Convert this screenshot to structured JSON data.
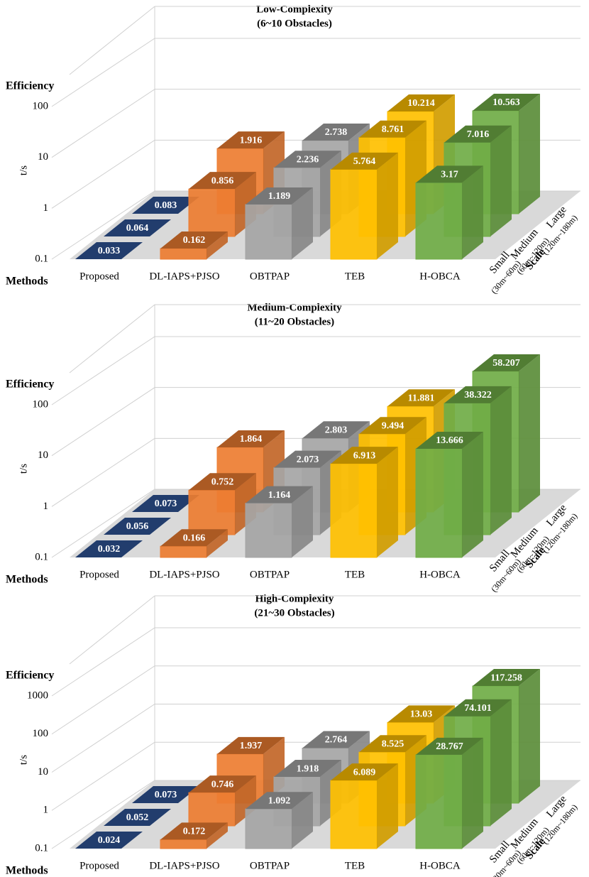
{
  "chart_data": [
    {
      "type": "bar3d",
      "title": "Low-Complexity",
      "subtitle": "(6~10  Obstacles)",
      "y_title": "Efficiency",
      "y_label": "t/s",
      "x_label": "Methods",
      "depth_label": "Scale",
      "categories": [
        "Proposed",
        "DL-IAPS+PJSO",
        "OBTPAP",
        "TEB",
        "H-OBCA"
      ],
      "colors": [
        "#2f5597",
        "#ed7d31",
        "#a5a5a5",
        "#ffc000",
        "#70ad47"
      ],
      "series": [
        {
          "name": "Small",
          "range": "(30m~60m)",
          "values": [
            0.033,
            0.162,
            1.189,
            5.764,
            3.17
          ]
        },
        {
          "name": "Medium",
          "range": "(60m~120m)",
          "values": [
            0.064,
            0.856,
            2.236,
            8.761,
            7.016
          ]
        },
        {
          "name": "Large",
          "range": "(120m~180m)",
          "values": [
            0.083,
            1.916,
            2.738,
            10.214,
            10.563
          ]
        }
      ],
      "log_y": true,
      "ylim": [
        0.1,
        100
      ],
      "yticks": [
        0.1,
        1,
        10,
        100
      ],
      "grid": true
    },
    {
      "type": "bar3d",
      "title": "Medium-Complexity",
      "subtitle": "(11~20 Obstacles)",
      "y_title": "Efficiency",
      "y_label": "t/s",
      "x_label": "Methods",
      "depth_label": "Scale",
      "categories": [
        "Proposed",
        "DL-IAPS+PJSO",
        "OBTPAP",
        "TEB",
        "H-OBCA"
      ],
      "colors": [
        "#2f5597",
        "#ed7d31",
        "#a5a5a5",
        "#ffc000",
        "#70ad47"
      ],
      "series": [
        {
          "name": "Small",
          "range": "(30m~60m)",
          "values": [
            0.032,
            0.166,
            1.164,
            6.913,
            13.666
          ]
        },
        {
          "name": "Medium",
          "range": "(60m~120m)",
          "values": [
            0.056,
            0.752,
            2.073,
            9.494,
            38.322
          ]
        },
        {
          "name": "Large",
          "range": "(120m~180m)",
          "values": [
            0.073,
            1.864,
            2.803,
            11.881,
            58.207
          ]
        }
      ],
      "log_y": true,
      "ylim": [
        0.1,
        100
      ],
      "yticks": [
        0.1,
        1,
        10,
        100
      ],
      "grid": true
    },
    {
      "type": "bar3d",
      "title": "High-Complexity",
      "subtitle": "(21~30 Obstacles)",
      "y_title": "Efficiency",
      "y_label": "t/s",
      "x_label": "Methods",
      "depth_label": "Scale",
      "categories": [
        "Proposed",
        "DL-IAPS+PJSO",
        "OBTPAP",
        "TEB",
        "H-OBCA"
      ],
      "colors": [
        "#2f5597",
        "#ed7d31",
        "#a5a5a5",
        "#ffc000",
        "#70ad47"
      ],
      "series": [
        {
          "name": "Small",
          "range": "(30m~60m)",
          "values": [
            0.024,
            0.172,
            1.092,
            6.089,
            28.767
          ]
        },
        {
          "name": "Medium",
          "range": "(60m~120m)",
          "values": [
            0.052,
            0.746,
            1.918,
            8.525,
            74.101
          ]
        },
        {
          "name": "Large",
          "range": "(120m~180m)",
          "values": [
            0.073,
            1.937,
            2.764,
            13.03,
            117.258
          ]
        }
      ],
      "log_y": true,
      "ylim": [
        0.1,
        1000
      ],
      "yticks": [
        0.1,
        1,
        10,
        100,
        1000
      ],
      "grid": true
    }
  ]
}
